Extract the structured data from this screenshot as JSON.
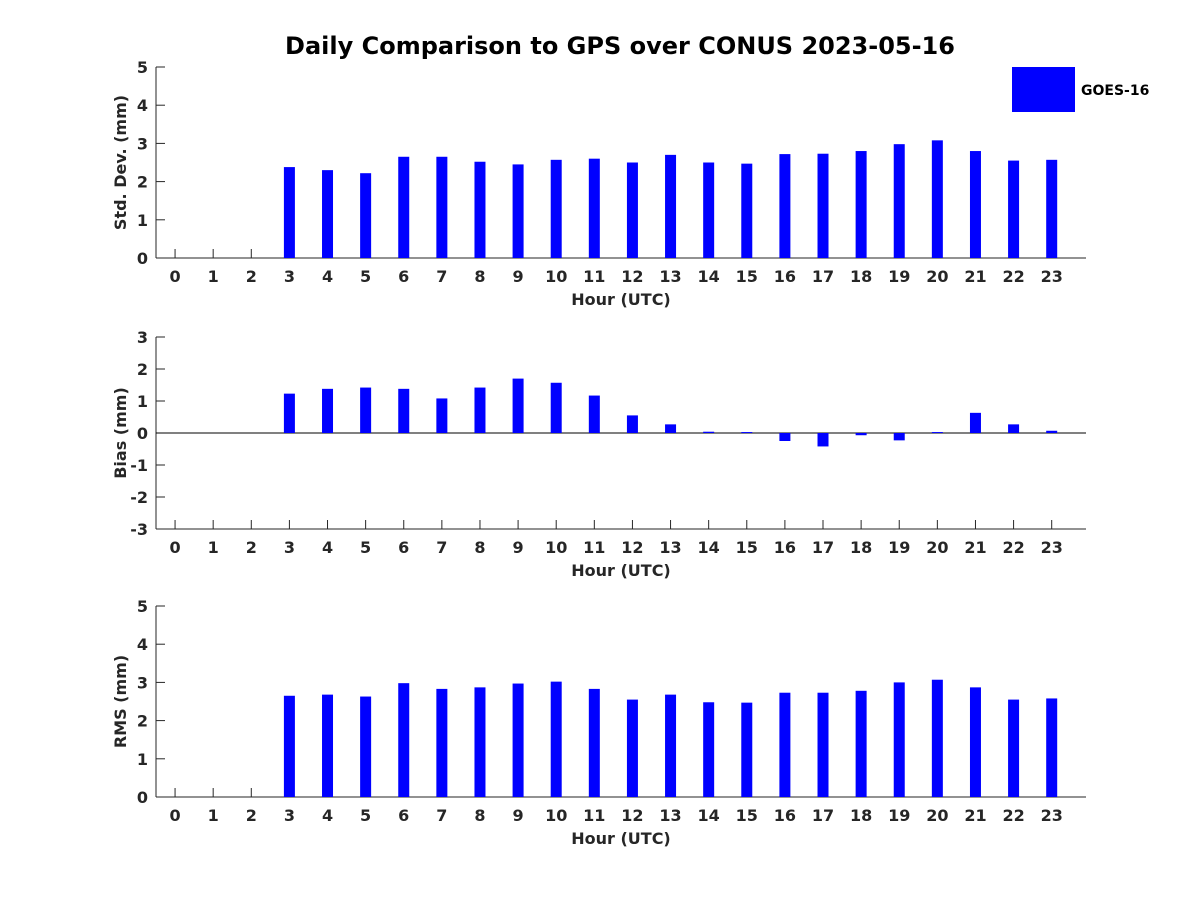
{
  "figure_title": "Daily Comparison to GPS over CONUS 2023-05-16",
  "legend": {
    "label": "GOES-16"
  },
  "colors": {
    "bar": "#0000ff",
    "axis": "#262626"
  },
  "chart_data": [
    {
      "type": "bar",
      "title": "Daily Comparison to GPS over CONUS 2023-05-16",
      "xlabel": "Hour (UTC)",
      "ylabel": "Std. Dev. (mm)",
      "ylim": [
        0,
        5
      ],
      "yticks": [
        0,
        1,
        2,
        3,
        4,
        5
      ],
      "categories": [
        "0",
        "1",
        "2",
        "3",
        "4",
        "5",
        "6",
        "7",
        "8",
        "9",
        "10",
        "11",
        "12",
        "13",
        "14",
        "15",
        "16",
        "17",
        "18",
        "19",
        "20",
        "21",
        "22",
        "23"
      ],
      "series": [
        {
          "name": "GOES-16",
          "values": [
            null,
            null,
            null,
            2.38,
            2.3,
            2.22,
            2.65,
            2.65,
            2.52,
            2.45,
            2.57,
            2.6,
            2.5,
            2.7,
            2.5,
            2.47,
            2.72,
            2.73,
            2.8,
            2.98,
            3.08,
            2.8,
            2.55,
            2.57
          ]
        }
      ]
    },
    {
      "type": "bar",
      "xlabel": "Hour (UTC)",
      "ylabel": "Bias (mm)",
      "ylim": [
        -3,
        3
      ],
      "yticks": [
        -3,
        -2,
        -1,
        0,
        1,
        2,
        3
      ],
      "zero_line": true,
      "categories": [
        "0",
        "1",
        "2",
        "3",
        "4",
        "5",
        "6",
        "7",
        "8",
        "9",
        "10",
        "11",
        "12",
        "13",
        "14",
        "15",
        "16",
        "17",
        "18",
        "19",
        "20",
        "21",
        "22",
        "23"
      ],
      "series": [
        {
          "name": "GOES-16",
          "values": [
            null,
            null,
            null,
            1.23,
            1.38,
            1.42,
            1.38,
            1.08,
            1.42,
            1.7,
            1.57,
            1.17,
            0.55,
            0.27,
            0.04,
            0.03,
            -0.25,
            -0.42,
            -0.07,
            -0.23,
            0.03,
            0.63,
            0.27,
            0.07
          ]
        }
      ]
    },
    {
      "type": "bar",
      "xlabel": "Hour (UTC)",
      "ylabel": "RMS (mm)",
      "ylim": [
        0,
        5
      ],
      "yticks": [
        0,
        1,
        2,
        3,
        4,
        5
      ],
      "categories": [
        "0",
        "1",
        "2",
        "3",
        "4",
        "5",
        "6",
        "7",
        "8",
        "9",
        "10",
        "11",
        "12",
        "13",
        "14",
        "15",
        "16",
        "17",
        "18",
        "19",
        "20",
        "21",
        "22",
        "23"
      ],
      "series": [
        {
          "name": "GOES-16",
          "values": [
            null,
            null,
            null,
            2.65,
            2.68,
            2.63,
            2.98,
            2.83,
            2.87,
            2.97,
            3.02,
            2.83,
            2.55,
            2.68,
            2.48,
            2.47,
            2.73,
            2.73,
            2.78,
            3.0,
            3.07,
            2.87,
            2.55,
            2.58
          ]
        }
      ]
    }
  ]
}
